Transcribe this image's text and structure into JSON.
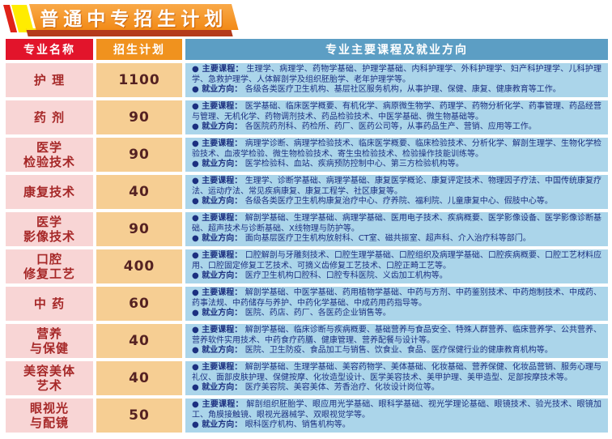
{
  "title": "普通中专招生计划",
  "labels": {
    "courses": "● 主要课程：  ",
    "jobs": "● 就业方向：  "
  },
  "table": {
    "headers": [
      "专业名称",
      "招生计划",
      "专业主要课程及就业方向"
    ],
    "rows": [
      {
        "major": "护 理",
        "plan": "1100",
        "courses": "生理学、病理学、药物学基础、护理学基础、内科护理学、外科护理学、妇产科护理学、儿科护理学、急救护理学、人体解剖学及组织胚胎学、老年护理学等。",
        "jobs": "各级各类医疗卫生机构、基层社区服务机构，从事护理、保健、康复、健康教育等工作。"
      },
      {
        "major": "药 剂",
        "plan": "90",
        "courses": "医学基础、临床医学概要、有机化学、病原微生物学、药理学、药物分析化学、药事管理、药品经营与管理、无机化学、药物调剂技术、药品检验技术、中医学基础、微生物基础等。",
        "jobs": "各医院药剂科、药检所、药厂、医药公司等，从事药品生产、营销、应用等工作。"
      },
      {
        "major": "医学\n检验技术",
        "plan": "90",
        "courses": "病理学诊断、病理学检验技术、临床医学概要、临床检验技术、分析化学、解剖生理学、生物化学检验技术、血液学检验、微生物检验技术、寄生虫检验技术、检验操作技能训练等。",
        "jobs": "医学检验科、血站、疾病预防控制中心、第三方检验机构等。"
      },
      {
        "major": "康复技术",
        "plan": "40",
        "courses": "生理学、诊断学基础、病理学基础、康复医学概论、康复评定技术、物理因子疗法、中国传统康复疗法、运动疗法、常见疾病康复、康复工程学、社区康复等。",
        "jobs": "各级各类医疗卫生机构康复治疗中心、疗养院、福利院、儿童康复中心、假肢中心等。"
      },
      {
        "major": "医学\n影像技术",
        "plan": "90",
        "courses": "解剖学基础、生理学基础、病理学基础、医用电子技术、疾病概要、医学影像设备、医学影像诊断基础、超声技术与诊断基础、X线物理与防护等。",
        "jobs": "面向基层医疗卫生机构放射科、CT室、磁共振室、超声科、介入治疗科等部门。"
      },
      {
        "major": "口腔\n修复工艺",
        "plan": "400",
        "courses": "口腔解剖与牙雕刻技术、口腔生理学基础、口腔组织及病理学基础、口腔疾病概要、口腔工艺材料应用、口腔固定修复工艺技术、可摘义齿修复工艺技术、口腔正畸工艺等。",
        "jobs": "医疗卫生机构口腔科、口腔专科医院、义齿加工机构等。"
      },
      {
        "major": "中 药",
        "plan": "60",
        "courses": "解剖学基础、中医学基础、药用植物学基础、中药与方剂、中药鉴别技术、中药炮制技术、中成药、药事法规、中药储存与养护、中药化学基础、中成药用药指导等。",
        "jobs": "医院、药店、药厂、各医药企业销售等。"
      },
      {
        "major": "营养\n与保健",
        "plan": "40",
        "courses": "解剖学基础、临床诊断与疾病概要、基础营养与食品安全、特殊人群营养、临床营养学、公共营养、营养软件实用技术、中药食疗药膳、健康管理、营养配餐与设计等。",
        "jobs": "医院、卫生防疫、食品加工与销售、饮食业、食品、医疗保健行业的健康教育机构等。"
      },
      {
        "major": "美容美体\n艺术",
        "plan": "40",
        "courses": "解剖学基础、生理学基础、美容药物学、美体基础、化妆基础、营养保健、化妆品营销、服务心理与礼仪、面部皮肤护理、保健按摩、化妆造型设计、医学美容技术、美甲护理、美甲造型、足部按摩技术等。",
        "jobs": "医疗美容院、美容美体、芳香治疗、化妆设计岗位等。"
      },
      {
        "major": "眼视光\n与配镜",
        "plan": "50",
        "courses": "解剖组织胚胎学、眼应用光学基础、眼科学基础、视光学理论基础、眼镜技术、验光技术、眼镜加工、角膜接触镜、眼视光器械学、双眼视觉学等。",
        "jobs": "眼科医疗机构、销售机构等。"
      }
    ]
  },
  "colors": {
    "header_red": "#e2142b",
    "header_orange": "#f0921e",
    "header_blue": "#5c9ec4",
    "cell_pink": "#f8d5d5",
    "cell_tan": "#f6ce93",
    "cell_blue": "#abd5ea",
    "banner_orange": "#f28a16",
    "banner_yellow": "#ffec00",
    "banner_shadow_red": "#b43a1b",
    "major_text": "#a62828",
    "plan_text": "#552222",
    "course_text": "#1c3080"
  }
}
